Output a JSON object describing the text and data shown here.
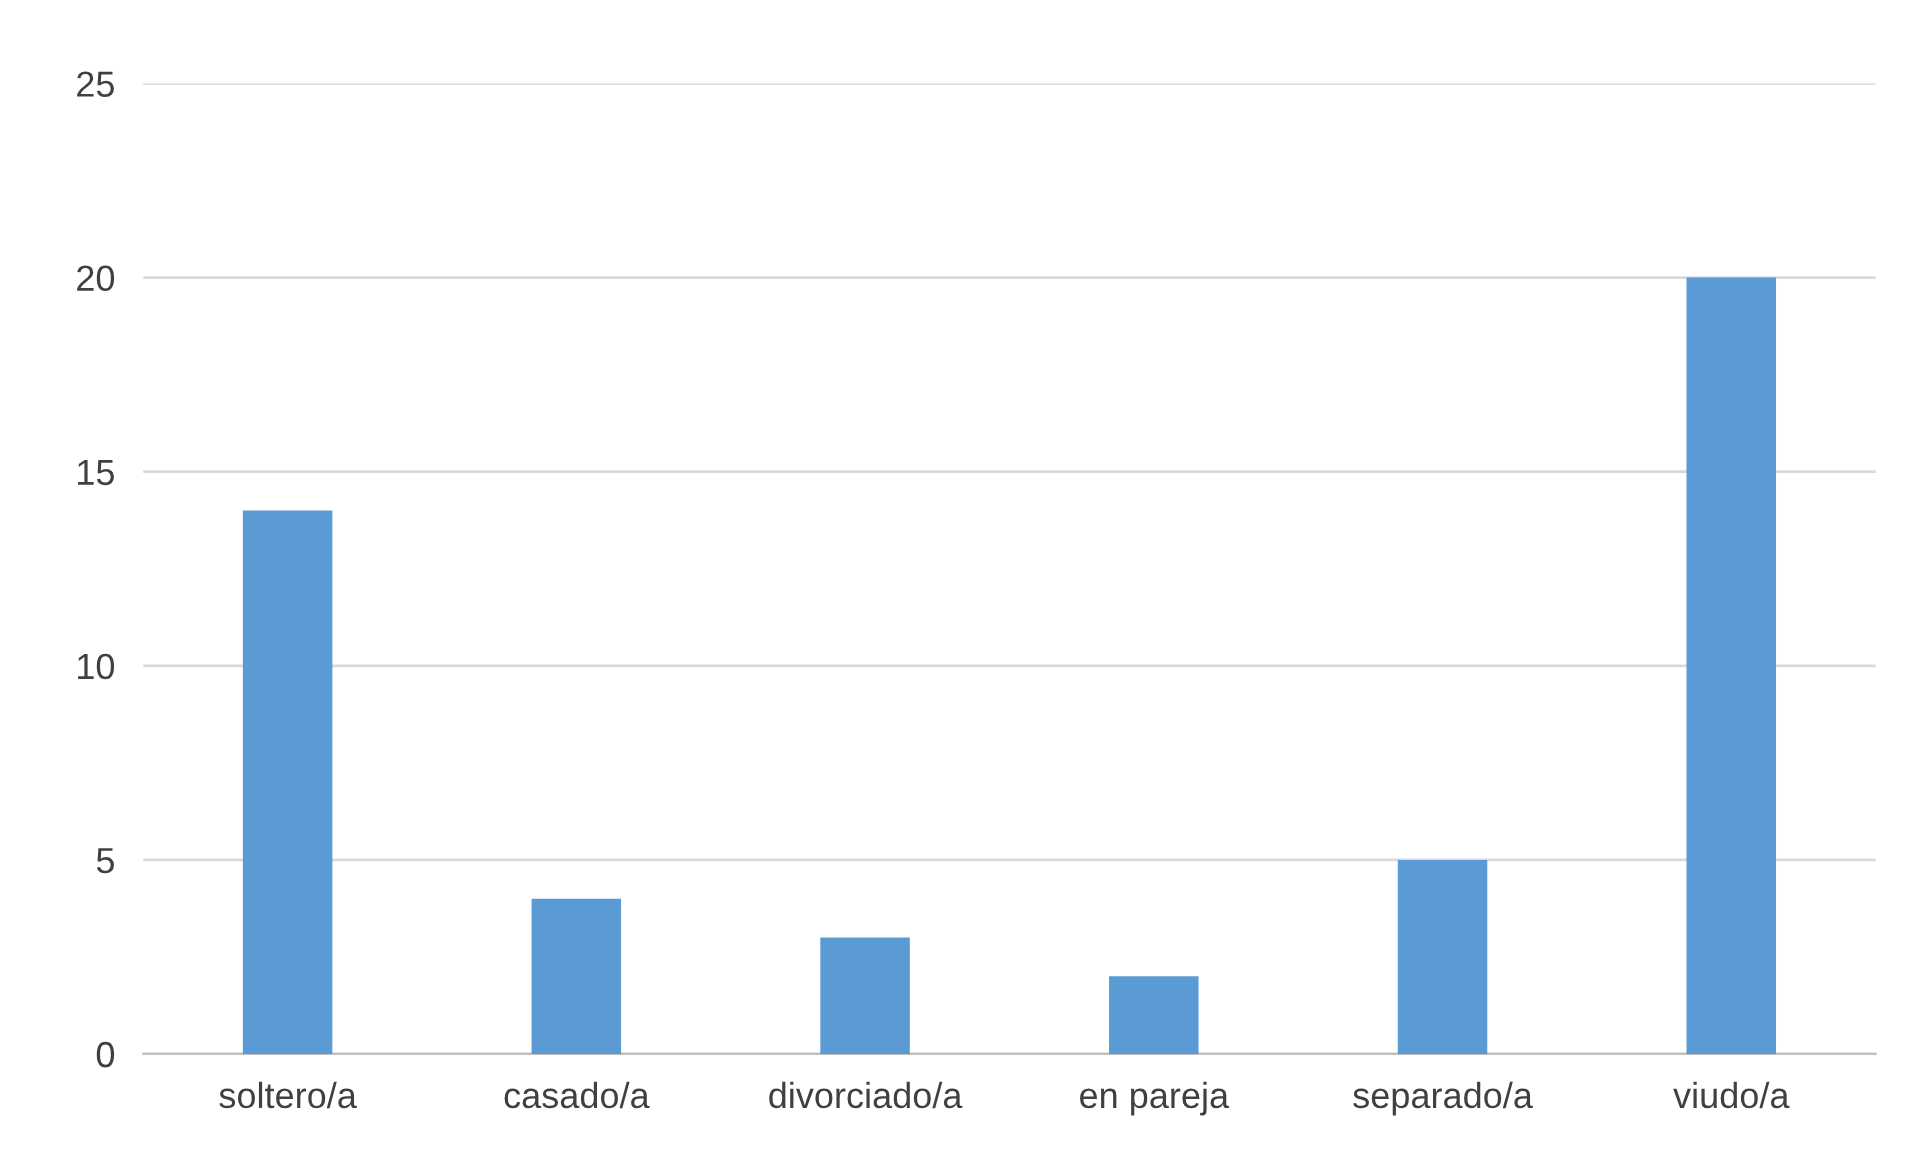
{
  "chart_data": {
    "type": "bar",
    "categories": [
      "soltero/a",
      "casado/a",
      "divorciado/a",
      "en pareja",
      "separado/a",
      "viudo/a"
    ],
    "values": [
      14,
      4,
      3,
      2,
      5,
      20
    ],
    "color": "#5b9bd5",
    "ylim": [
      0,
      25
    ],
    "yticks": [
      0,
      5,
      10,
      15,
      20,
      25
    ],
    "grid": "y",
    "legend": false
  }
}
